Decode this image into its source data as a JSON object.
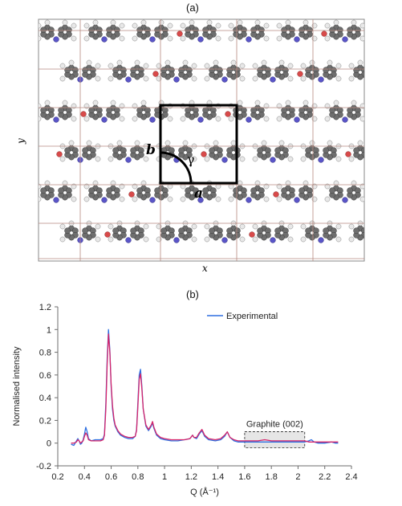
{
  "panel_a": {
    "label": "(a)",
    "x_axis": "x",
    "y_axis": "y",
    "cell_labels": {
      "a": "a",
      "b": "b",
      "gamma": "γ"
    },
    "colors": {
      "carbon": "#6e6e6e",
      "hydrogen": "#e8e8e8",
      "nitrogen": "#5a55c8",
      "oxygen": "#d84a4a",
      "grid": "#b78a80",
      "cell": "#000000"
    }
  },
  "panel_b": {
    "label": "(b)"
  },
  "chart_data": {
    "type": "line",
    "xlabel": "Q (Å⁻¹)",
    "ylabel": "Normalised intensity",
    "xlim": [
      0.2,
      2.4
    ],
    "ylim": [
      -0.2,
      1.2
    ],
    "xticks": [
      "0.2",
      "0.4",
      "0.6",
      "0.8",
      "1",
      "1.2",
      "1.4",
      "1.6",
      "1.8",
      "2",
      "2.2",
      "2.4"
    ],
    "yticks": [
      "-0.2",
      "0",
      "0.2",
      "0.4",
      "0.6",
      "0.8",
      "1",
      "1.2"
    ],
    "legend": {
      "entries": [
        "Experimental"
      ],
      "position": "top-right"
    },
    "annotation": {
      "text": "Graphite (002)",
      "x_range": [
        1.6,
        2.05
      ],
      "y_range": [
        -0.04,
        0.1
      ]
    },
    "series": [
      {
        "name": "Experimental",
        "color": "#2e6fe0",
        "points": [
          [
            0.3,
            -0.01
          ],
          [
            0.32,
            -0.02
          ],
          [
            0.34,
            0.02
          ],
          [
            0.35,
            0.04
          ],
          [
            0.36,
            0.02
          ],
          [
            0.37,
            -0.01
          ],
          [
            0.38,
            0.0
          ],
          [
            0.39,
            0.03
          ],
          [
            0.4,
            0.08
          ],
          [
            0.41,
            0.14
          ],
          [
            0.42,
            0.1
          ],
          [
            0.43,
            0.04
          ],
          [
            0.45,
            0.02
          ],
          [
            0.48,
            0.03
          ],
          [
            0.5,
            0.03
          ],
          [
            0.52,
            0.03
          ],
          [
            0.54,
            0.04
          ],
          [
            0.55,
            0.08
          ],
          [
            0.56,
            0.35
          ],
          [
            0.57,
            0.75
          ],
          [
            0.58,
            1.0
          ],
          [
            0.59,
            0.82
          ],
          [
            0.6,
            0.5
          ],
          [
            0.61,
            0.3
          ],
          [
            0.62,
            0.2
          ],
          [
            0.63,
            0.15
          ],
          [
            0.65,
            0.1
          ],
          [
            0.67,
            0.07
          ],
          [
            0.7,
            0.05
          ],
          [
            0.73,
            0.04
          ],
          [
            0.76,
            0.04
          ],
          [
            0.78,
            0.06
          ],
          [
            0.79,
            0.12
          ],
          [
            0.8,
            0.35
          ],
          [
            0.81,
            0.6
          ],
          [
            0.82,
            0.65
          ],
          [
            0.83,
            0.5
          ],
          [
            0.84,
            0.3
          ],
          [
            0.86,
            0.15
          ],
          [
            0.88,
            0.11
          ],
          [
            0.9,
            0.15
          ],
          [
            0.91,
            0.18
          ],
          [
            0.92,
            0.13
          ],
          [
            0.94,
            0.07
          ],
          [
            0.97,
            0.04
          ],
          [
            1.0,
            0.03
          ],
          [
            1.05,
            0.02
          ],
          [
            1.1,
            0.02
          ],
          [
            1.15,
            0.03
          ],
          [
            1.19,
            0.04
          ],
          [
            1.21,
            0.07
          ],
          [
            1.22,
            0.05
          ],
          [
            1.24,
            0.04
          ],
          [
            1.26,
            0.08
          ],
          [
            1.28,
            0.11
          ],
          [
            1.3,
            0.06
          ],
          [
            1.33,
            0.03
          ],
          [
            1.38,
            0.02
          ],
          [
            1.42,
            0.03
          ],
          [
            1.45,
            0.06
          ],
          [
            1.47,
            0.1
          ],
          [
            1.49,
            0.05
          ],
          [
            1.52,
            0.02
          ],
          [
            1.55,
            0.01
          ],
          [
            1.6,
            0.01
          ],
          [
            1.7,
            0.01
          ],
          [
            1.8,
            0.01
          ],
          [
            1.9,
            0.01
          ],
          [
            2.0,
            0.01
          ],
          [
            2.05,
            0.01
          ],
          [
            2.08,
            0.02
          ],
          [
            2.1,
            0.03
          ],
          [
            2.12,
            0.01
          ],
          [
            2.15,
            0.0
          ],
          [
            2.2,
            0.0
          ],
          [
            2.25,
            0.01
          ],
          [
            2.28,
            0.0
          ],
          [
            2.3,
            0.0
          ]
        ]
      },
      {
        "color": "#d6246a",
        "points": [
          [
            0.3,
            0.0
          ],
          [
            0.32,
            0.0
          ],
          [
            0.34,
            0.01
          ],
          [
            0.35,
            0.03
          ],
          [
            0.36,
            0.02
          ],
          [
            0.37,
            0.0
          ],
          [
            0.38,
            0.01
          ],
          [
            0.39,
            0.02
          ],
          [
            0.4,
            0.06
          ],
          [
            0.41,
            0.09
          ],
          [
            0.42,
            0.07
          ],
          [
            0.43,
            0.03
          ],
          [
            0.45,
            0.02
          ],
          [
            0.48,
            0.02
          ],
          [
            0.5,
            0.02
          ],
          [
            0.52,
            0.02
          ],
          [
            0.54,
            0.03
          ],
          [
            0.55,
            0.07
          ],
          [
            0.56,
            0.3
          ],
          [
            0.57,
            0.7
          ],
          [
            0.58,
            0.96
          ],
          [
            0.59,
            0.8
          ],
          [
            0.6,
            0.52
          ],
          [
            0.61,
            0.33
          ],
          [
            0.62,
            0.22
          ],
          [
            0.63,
            0.16
          ],
          [
            0.65,
            0.11
          ],
          [
            0.67,
            0.08
          ],
          [
            0.7,
            0.06
          ],
          [
            0.73,
            0.05
          ],
          [
            0.76,
            0.05
          ],
          [
            0.78,
            0.06
          ],
          [
            0.79,
            0.11
          ],
          [
            0.8,
            0.32
          ],
          [
            0.81,
            0.56
          ],
          [
            0.82,
            0.61
          ],
          [
            0.83,
            0.48
          ],
          [
            0.84,
            0.3
          ],
          [
            0.86,
            0.16
          ],
          [
            0.88,
            0.12
          ],
          [
            0.9,
            0.16
          ],
          [
            0.91,
            0.19
          ],
          [
            0.92,
            0.14
          ],
          [
            0.94,
            0.08
          ],
          [
            0.97,
            0.05
          ],
          [
            1.0,
            0.04
          ],
          [
            1.05,
            0.03
          ],
          [
            1.1,
            0.03
          ],
          [
            1.15,
            0.03
          ],
          [
            1.19,
            0.04
          ],
          [
            1.21,
            0.07
          ],
          [
            1.22,
            0.05
          ],
          [
            1.24,
            0.05
          ],
          [
            1.26,
            0.09
          ],
          [
            1.28,
            0.12
          ],
          [
            1.3,
            0.07
          ],
          [
            1.33,
            0.04
          ],
          [
            1.38,
            0.03
          ],
          [
            1.42,
            0.04
          ],
          [
            1.45,
            0.07
          ],
          [
            1.47,
            0.1
          ],
          [
            1.49,
            0.05
          ],
          [
            1.52,
            0.03
          ],
          [
            1.55,
            0.02
          ],
          [
            1.6,
            0.02
          ],
          [
            1.7,
            0.02
          ],
          [
            1.75,
            0.03
          ],
          [
            1.8,
            0.02
          ],
          [
            1.9,
            0.02
          ],
          [
            2.0,
            0.02
          ],
          [
            2.05,
            0.02
          ],
          [
            2.08,
            0.01
          ],
          [
            2.1,
            0.01
          ],
          [
            2.12,
            0.01
          ],
          [
            2.15,
            0.01
          ],
          [
            2.2,
            0.01
          ],
          [
            2.25,
            0.01
          ],
          [
            2.28,
            0.01
          ],
          [
            2.3,
            0.01
          ]
        ]
      }
    ]
  }
}
